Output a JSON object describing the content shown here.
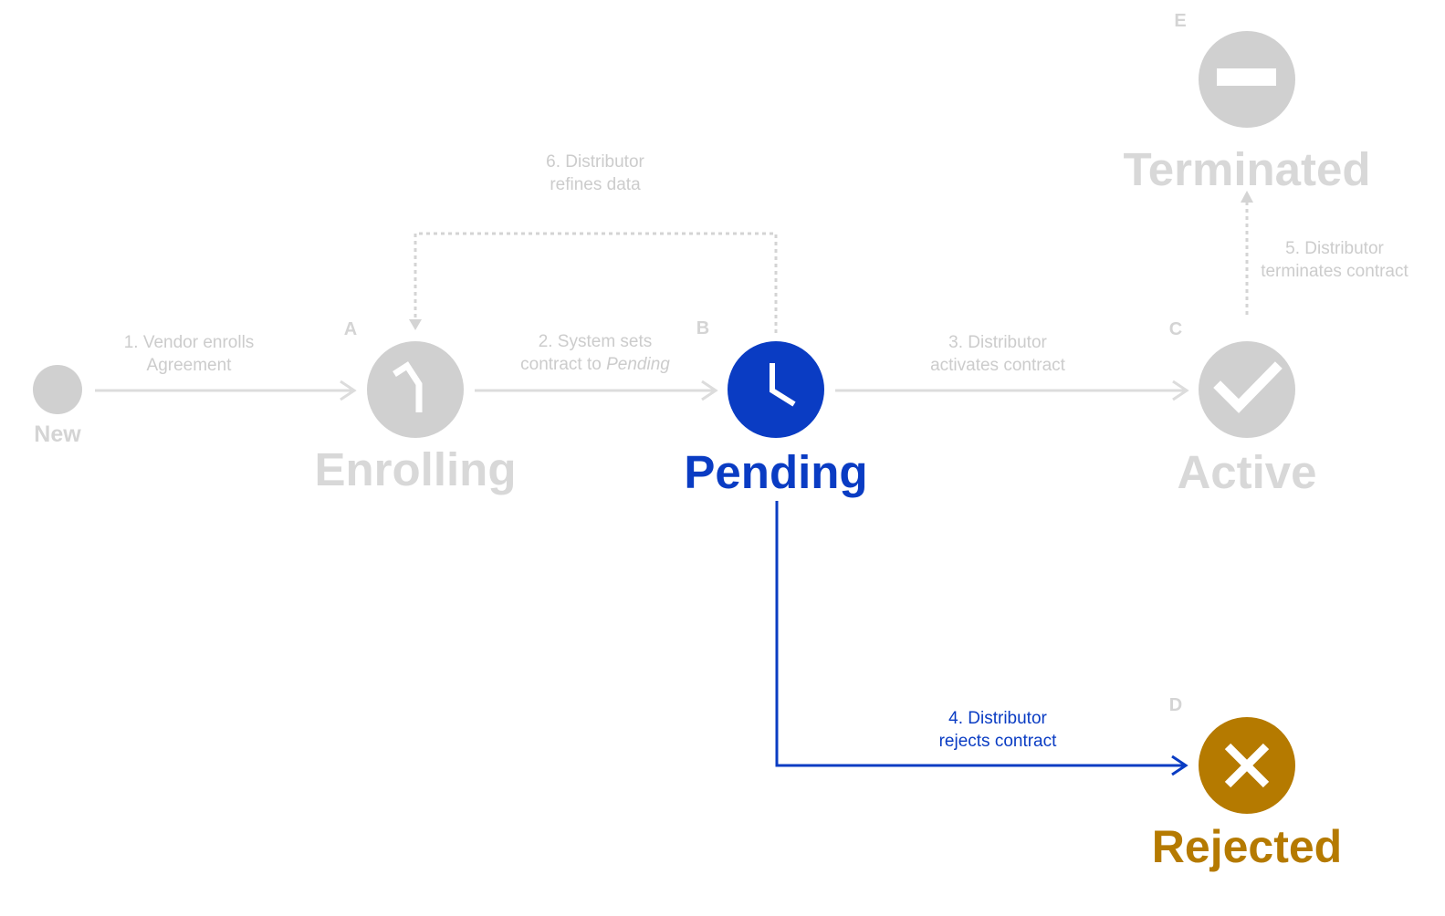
{
  "states": {
    "new": {
      "name": "New"
    },
    "a": {
      "letter": "A",
      "name": "Enrolling"
    },
    "b": {
      "letter": "B",
      "name": "Pending"
    },
    "c": {
      "letter": "C",
      "name": "Active"
    },
    "d": {
      "letter": "D",
      "name": "Rejected"
    },
    "e": {
      "letter": "E",
      "name": "Terminated"
    }
  },
  "transitions": {
    "t1": {
      "line1": "1. Vendor enrolls",
      "line2": "Agreement"
    },
    "t2": {
      "line1": "2. System sets",
      "line2_prefix": "contract to ",
      "line2_italic": "Pending"
    },
    "t3": {
      "line1": "3. Distributor",
      "line2": "activates contract"
    },
    "t4": {
      "line1": "4. Distributor",
      "line2": "rejects contract"
    },
    "t5": {
      "line1": "5. Distributor",
      "line2": "terminates contract"
    },
    "t6": {
      "line1": "6. Distributor",
      "line2": "refines data"
    }
  },
  "colors": {
    "inactive": "#d0d0d0",
    "active_blue": "#0a3cc3",
    "rejected": "#b57a00"
  },
  "icons": {
    "new": "dot-icon",
    "a": "clock-hourglass-icon",
    "b": "clock-icon",
    "c": "checkmark-icon",
    "d": "x-icon",
    "e": "minus-icon"
  }
}
